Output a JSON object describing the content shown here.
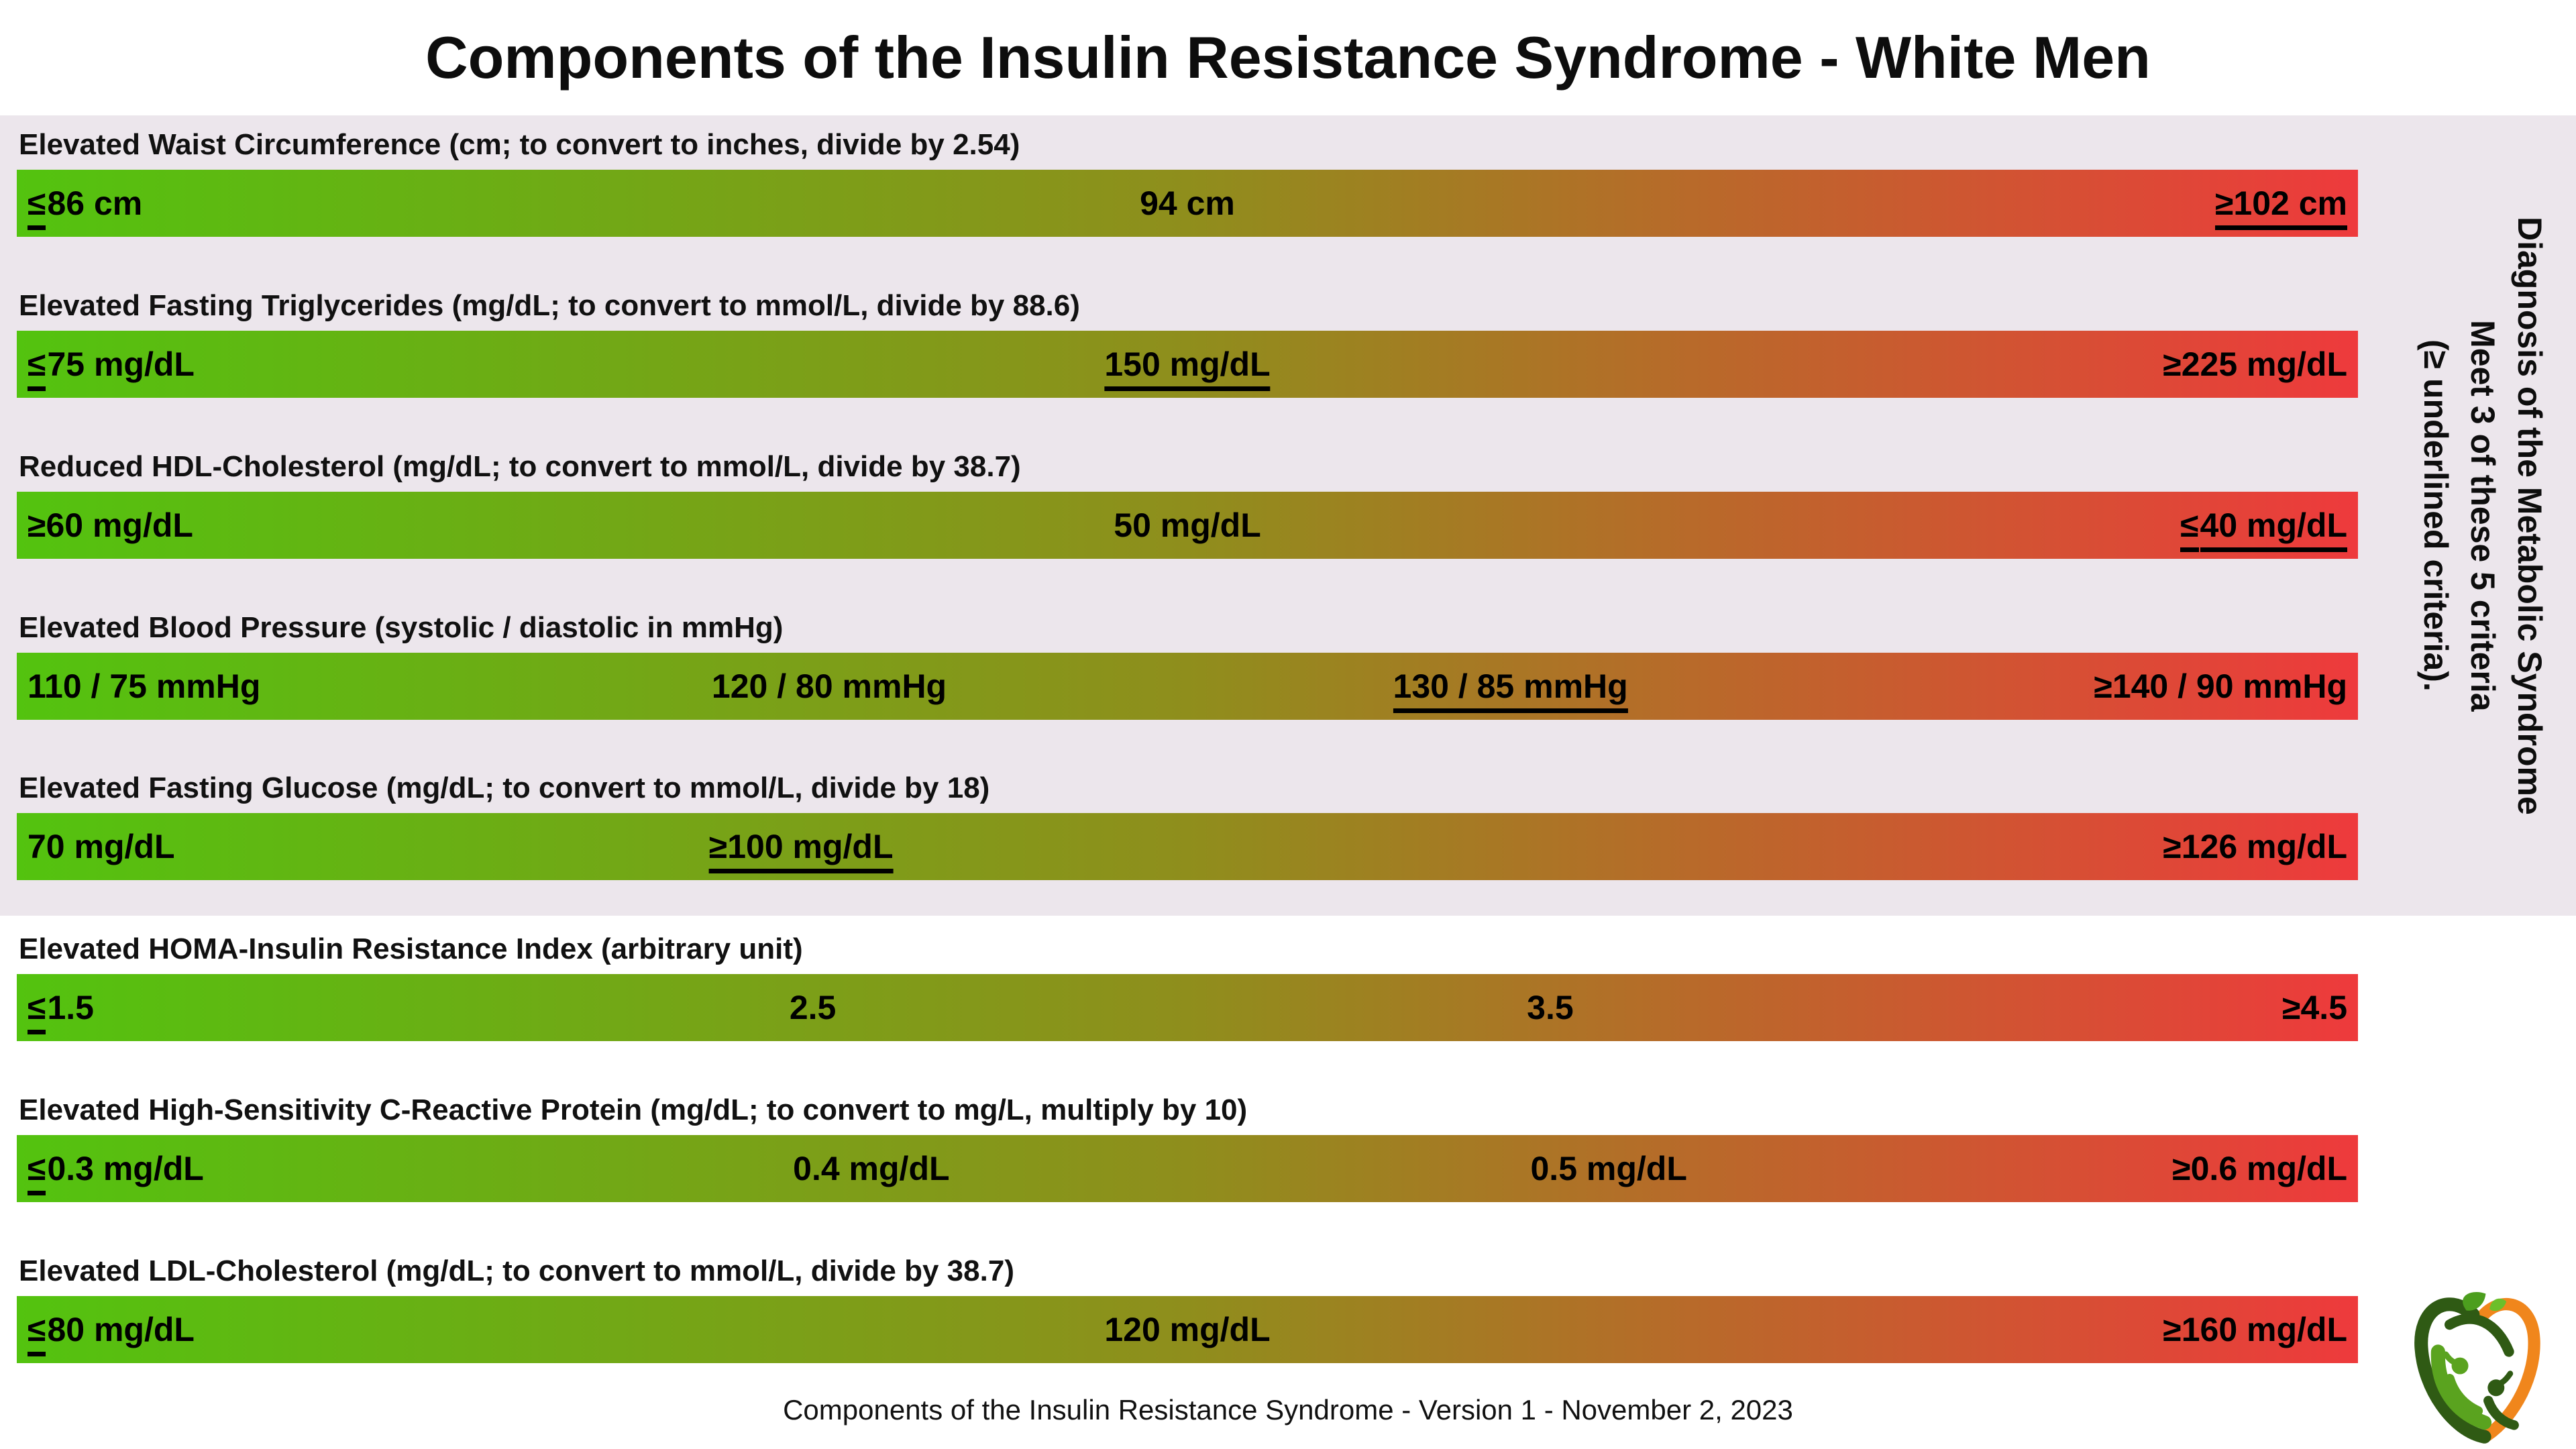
{
  "title": "Components of the Insulin Resistance Syndrome - White Men",
  "footer": "Components of the Insulin Resistance Syndrome - Version 1 - November 2, 2023",
  "side_note": {
    "lines": [
      "Diagnosis of the Metabolic Syndrome",
      "Meet 3 of these 5 criteria",
      "(≥ underlined criteria)."
    ]
  },
  "colors": {
    "gradient_start": "#53c30f",
    "gradient_mid": "#8f8e1c",
    "gradient_end": "#ee3a3c",
    "panel_bg": "#ece6ec",
    "logo_dark_green": "#2f5a14",
    "logo_green": "#5aa31f",
    "logo_leaf_green": "#4c9e1e",
    "logo_orange": "#f0861c"
  },
  "sections": [
    {
      "label": "Elevated Waist Circumference (cm; to convert to inches, divide by 2.54)",
      "markers": [
        {
          "text": "≤86 cm",
          "pos": 0
        },
        {
          "text": "94 cm",
          "pos": 50
        },
        {
          "text": "≥102 cm",
          "pos": 100,
          "underlined": true
        }
      ]
    },
    {
      "label": "Elevated Fasting Triglycerides (mg/dL; to convert to mmol/L, divide by 88.6)",
      "markers": [
        {
          "text": "≤75 mg/dL",
          "pos": 0
        },
        {
          "text": "150 mg/dL",
          "pos": 50,
          "underlined": true
        },
        {
          "text": "≥225 mg/dL",
          "pos": 100
        }
      ]
    },
    {
      "label": "Reduced HDL-Cholesterol (mg/dL; to convert to mmol/L, divide by 38.7)",
      "markers": [
        {
          "text": "≥60 mg/dL",
          "pos": 0
        },
        {
          "text": "50 mg/dL",
          "pos": 50
        },
        {
          "text": "≤40 mg/dL",
          "pos": 100,
          "underlined": true
        }
      ]
    },
    {
      "label": "Elevated Blood Pressure (systolic / diastolic in mmHg)",
      "markers": [
        {
          "text": "110 / 75 mmHg",
          "pos": 0
        },
        {
          "text": "120 / 80 mmHg",
          "pos": 34.7
        },
        {
          "text": "130 / 85 mmHg",
          "pos": 63.8,
          "underlined": true
        },
        {
          "text": "≥140 / 90 mmHg",
          "pos": 100
        }
      ]
    },
    {
      "label": "Elevated Fasting Glucose (mg/dL; to convert to mmol/L, divide by 18)",
      "markers": [
        {
          "text": "70 mg/dL",
          "pos": 0
        },
        {
          "text": "≥100 mg/dL",
          "pos": 33.5,
          "underlined": true
        },
        {
          "text": "≥126 mg/dL",
          "pos": 100
        }
      ]
    },
    {
      "label": "Elevated HOMA-Insulin Resistance Index (arbitrary unit)",
      "markers": [
        {
          "text": "≤1.5",
          "pos": 0
        },
        {
          "text": "2.5",
          "pos": 34
        },
        {
          "text": "3.5",
          "pos": 65.5
        },
        {
          "text": "≥4.5",
          "pos": 100
        }
      ]
    },
    {
      "label": "Elevated High-Sensitivity C-Reactive Protein (mg/dL; to convert to mg/L, multiply by 10)",
      "markers": [
        {
          "text": "≤0.3 mg/dL",
          "pos": 0
        },
        {
          "text": "0.4 mg/dL",
          "pos": 36.5
        },
        {
          "text": "0.5 mg/dL",
          "pos": 68
        },
        {
          "text": "≥0.6 mg/dL",
          "pos": 100
        }
      ]
    },
    {
      "label": "Elevated LDL-Cholesterol (mg/dL; to convert to mmol/L, divide by 38.7)",
      "markers": [
        {
          "text": "≤80 mg/dL",
          "pos": 0
        },
        {
          "text": "120 mg/dL",
          "pos": 50
        },
        {
          "text": "≥160 mg/dL",
          "pos": 100
        }
      ]
    }
  ],
  "chart_data": {
    "type": "table",
    "title": "Components of the Insulin Resistance Syndrome - White Men",
    "legend_note": "Diagnosis of the Metabolic Syndrome: Meet 3 of these 5 criteria (≥ underlined criteria).",
    "scale": "green-to-red gradient, low risk to high risk",
    "scale_colors": [
      "#53c30f",
      "#8f8e1c",
      "#ee3a3c"
    ],
    "rows": [
      {
        "component": "Elevated Waist Circumference",
        "unit": "cm",
        "conversion": "to convert to inches, divide by 2.54",
        "values": [
          "≤86",
          "94",
          "≥102"
        ],
        "diagnostic_criterion": "≥102 cm"
      },
      {
        "component": "Elevated Fasting Triglycerides",
        "unit": "mg/dL",
        "conversion": "to convert to mmol/L, divide by 88.6",
        "values": [
          "≤75",
          "150",
          "≥225"
        ],
        "diagnostic_criterion": "150 mg/dL"
      },
      {
        "component": "Reduced HDL-Cholesterol",
        "unit": "mg/dL",
        "conversion": "to convert to mmol/L, divide by 38.7",
        "values": [
          "≥60",
          "50",
          "≤40"
        ],
        "diagnostic_criterion": "≤40 mg/dL"
      },
      {
        "component": "Elevated Blood Pressure",
        "unit": "mmHg",
        "conversion": "systolic / diastolic",
        "values": [
          "110 / 75",
          "120 / 80",
          "130 / 85",
          "≥140 / 90"
        ],
        "diagnostic_criterion": "130 / 85 mmHg"
      },
      {
        "component": "Elevated Fasting Glucose",
        "unit": "mg/dL",
        "conversion": "to convert to mmol/L, divide by 18",
        "values": [
          "70",
          "≥100",
          "≥126"
        ],
        "diagnostic_criterion": "≥100 mg/dL"
      },
      {
        "component": "Elevated HOMA-Insulin Resistance Index",
        "unit": "arbitrary unit",
        "conversion": "",
        "values": [
          "≤1.5",
          "2.5",
          "3.5",
          "≥4.5"
        ],
        "diagnostic_criterion": ""
      },
      {
        "component": "Elevated High-Sensitivity C-Reactive Protein",
        "unit": "mg/dL",
        "conversion": "to convert to mg/L, multiply by 10",
        "values": [
          "≤0.3",
          "0.4",
          "0.5",
          "≥0.6"
        ],
        "diagnostic_criterion": ""
      },
      {
        "component": "Elevated LDL-Cholesterol",
        "unit": "mg/dL",
        "conversion": "to convert to mmol/L, divide by 38.7",
        "values": [
          "≤80",
          "120",
          "≥160"
        ],
        "diagnostic_criterion": ""
      }
    ]
  }
}
